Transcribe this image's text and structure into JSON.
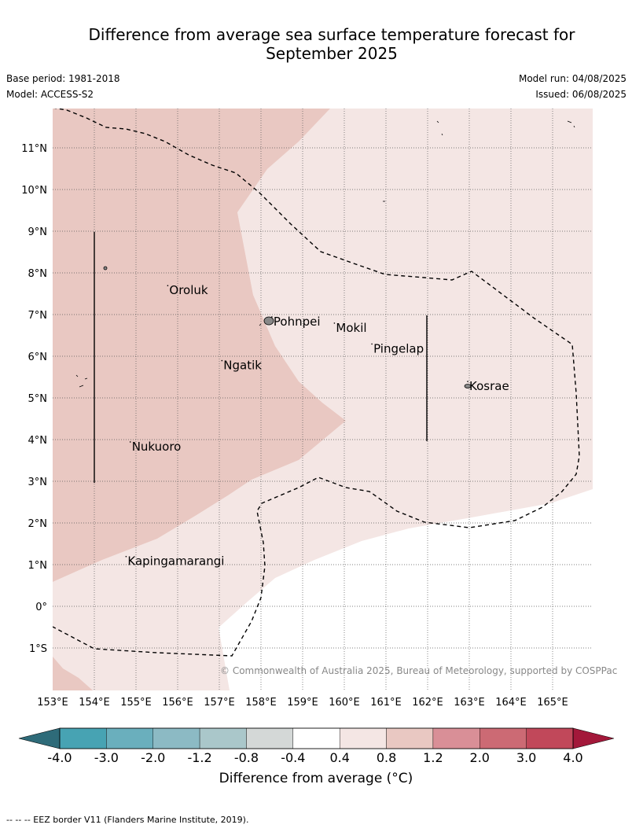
{
  "title_line1": "Difference from average sea surface temperature forecast for",
  "title_line2": "September 2025",
  "base_period": "Base period: 1981-2018",
  "model": "Model: ACCESS-S2",
  "model_run": "Model run: 04/08/2025",
  "issued": "Issued: 06/08/2025",
  "credit": "© Commonwealth of Australia 2025, Bureau of Meteorology, supported by COSPPac",
  "footnote": "--  --  -- EEZ border V11 (Flanders Marine Institute, 2019).",
  "map": {
    "lon_labels": [
      "153°E",
      "154°E",
      "155°E",
      "156°E",
      "157°E",
      "158°E",
      "159°E",
      "160°E",
      "161°E",
      "162°E",
      "163°E",
      "164°E",
      "165°E"
    ],
    "lat_labels": [
      "11°N",
      "10°N",
      "9°N",
      "8°N",
      "7°N",
      "6°N",
      "5°N",
      "4°N",
      "3°N",
      "2°N",
      "1°N",
      "0°",
      "1°S"
    ],
    "places": [
      {
        "name": "Oroluk",
        "lon": 155.8,
        "lat": 7.6
      },
      {
        "name": "Pohnpei",
        "lon": 158.3,
        "lat": 6.85
      },
      {
        "name": "Mokil",
        "lon": 159.8,
        "lat": 6.7
      },
      {
        "name": "Pingelap",
        "lon": 160.7,
        "lat": 6.2
      },
      {
        "name": "Ngatik",
        "lon": 157.1,
        "lat": 5.8
      },
      {
        "name": "Kosrae",
        "lon": 163.0,
        "lat": 5.3
      },
      {
        "name": "Nukuoro",
        "lon": 154.9,
        "lat": 3.85
      },
      {
        "name": "Kapingamarangi",
        "lon": 154.8,
        "lat": 1.1
      }
    ]
  },
  "colorbar": {
    "title": "Difference from average (°C)",
    "tick_labels": [
      "-4.0",
      "-3.0",
      "-2.0",
      "-1.2",
      "-0.8",
      "-0.4",
      "0.4",
      "0.8",
      "1.2",
      "2.0",
      "3.0",
      "4.0"
    ],
    "colors": [
      "#47a3b3",
      "#6aafbd",
      "#8cbac4",
      "#aac7ca",
      "#d4d8d7",
      "#ffffff",
      "#f4e6e4",
      "#e9c8c2",
      "#d98f97",
      "#cc6a74",
      "#c1485a"
    ],
    "under_color": "#2e6b79",
    "over_color": "#a3183a"
  }
}
